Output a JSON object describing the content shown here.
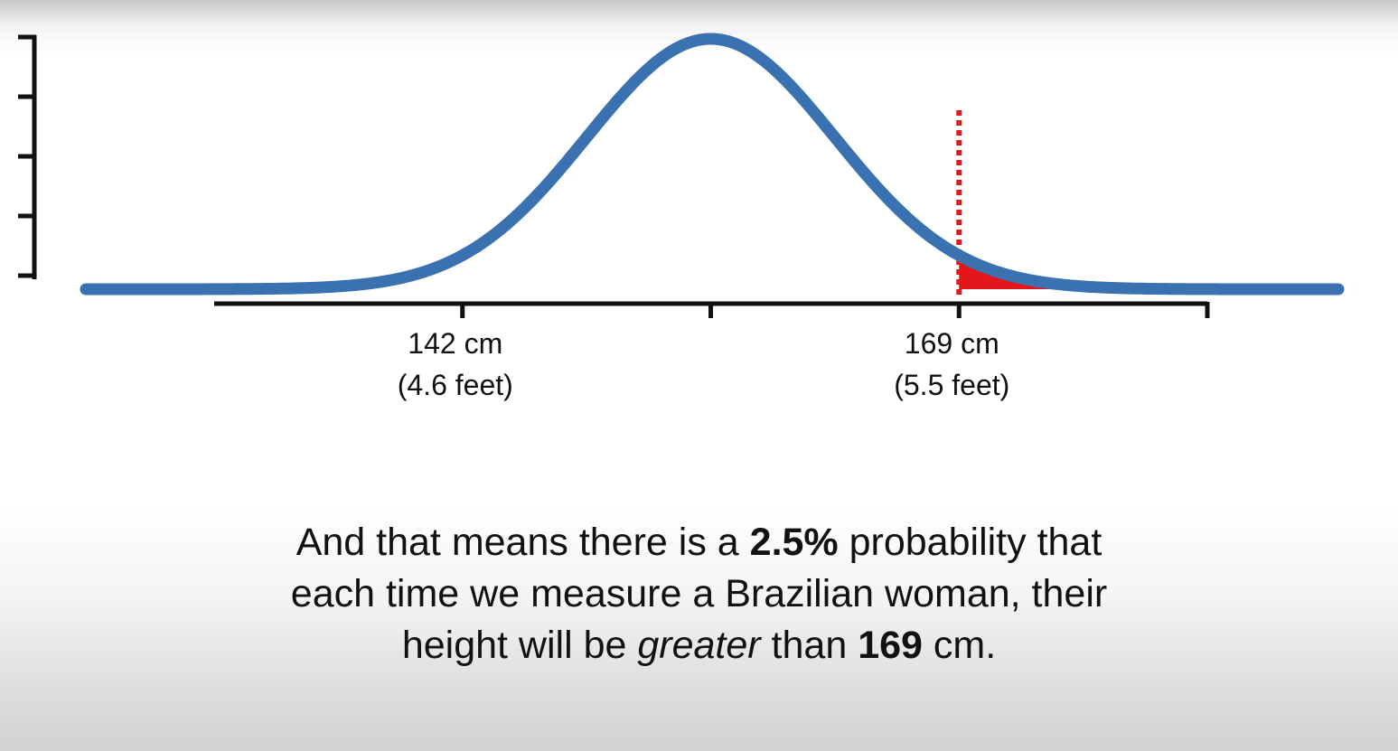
{
  "colors": {
    "curve": "#3a71b0",
    "shade": "#e3161b",
    "threshold": "#e3161b",
    "axis": "#111111",
    "text": "#111111"
  },
  "chart_data": {
    "type": "line",
    "distribution": "normal",
    "mean": 155.5,
    "sd": 6.75,
    "xlim": [
      128.5,
      182.5
    ],
    "x_ticks": [
      {
        "value": 142,
        "label": "142 cm",
        "sublabel": "(4.6 feet)"
      },
      {
        "value": 155.5,
        "label": "",
        "sublabel": ""
      },
      {
        "value": 169,
        "label": "169 cm",
        "sublabel": "(5.5 feet)"
      },
      {
        "value": 182.5,
        "label": "",
        "sublabel": ""
      }
    ],
    "y_ticks": 5,
    "threshold": {
      "value": 169,
      "style": "dotted"
    },
    "shaded_region": {
      "from": 169,
      "to": "upper tail",
      "probability": 0.025
    },
    "title": "",
    "xlabel": "",
    "ylabel": ""
  },
  "caption": {
    "line1": {
      "t1": "And that means there is a ",
      "t2": "2.5%",
      "t3": " probability that"
    },
    "line2": {
      "t1": "each time we measure a Brazilian woman, their"
    },
    "line3": {
      "t1": "height will be ",
      "t2": "greater",
      "t3": " than ",
      "t4": "169",
      "t5": " cm."
    }
  }
}
